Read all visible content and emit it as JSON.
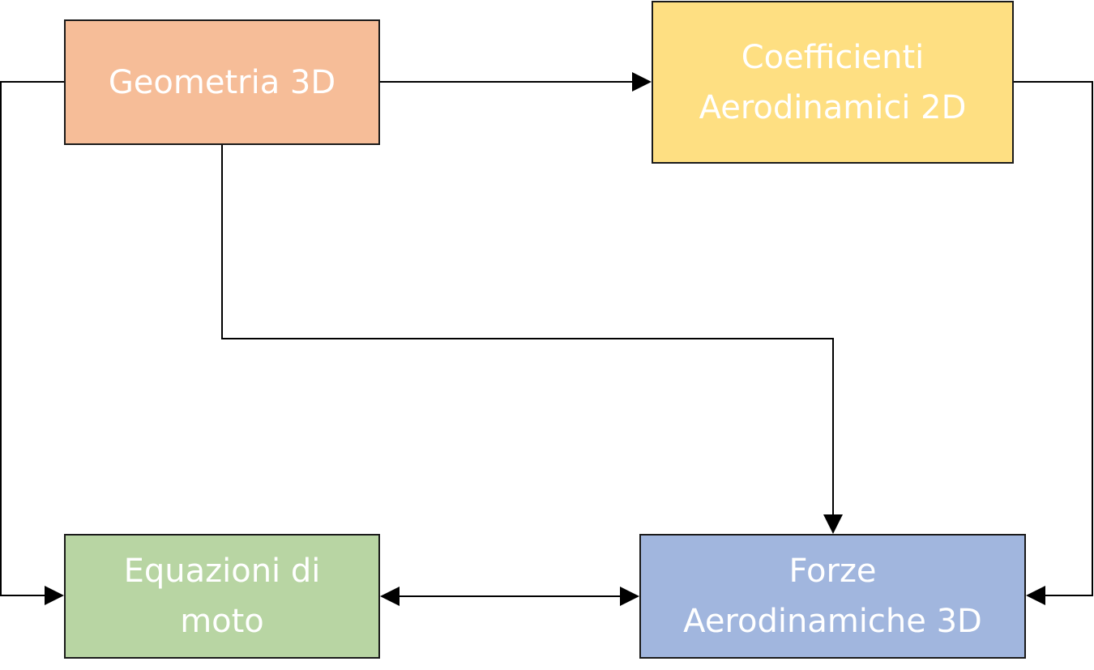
{
  "diagram": {
    "nodes": [
      {
        "id": "geometria",
        "label": "Geometria 3D",
        "color": "#f6bd98"
      },
      {
        "id": "coefficienti",
        "label": "Coefficienti\nAerodinamici 2D",
        "color": "#fedf82"
      },
      {
        "id": "equazioni",
        "label": "Equazioni di\nmoto",
        "color": "#b8d5a3"
      },
      {
        "id": "forze",
        "label": "Forze\nAerodinamiche 3D",
        "color": "#a1b6de"
      }
    ],
    "edges": [
      {
        "from": "geometria",
        "to": "coefficienti",
        "direction": "forward"
      },
      {
        "from": "geometria",
        "to": "forze",
        "direction": "forward"
      },
      {
        "from": "geometria",
        "to": "equazioni",
        "direction": "forward"
      },
      {
        "from": "coefficienti",
        "to": "forze",
        "direction": "forward"
      },
      {
        "from": "equazioni",
        "to": "forze",
        "direction": "both"
      }
    ],
    "line_color": "#000000"
  }
}
